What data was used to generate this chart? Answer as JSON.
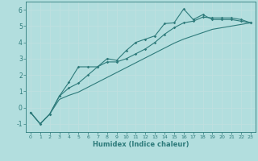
{
  "xlabel": "Humidex (Indice chaleur)",
  "ylabel": "",
  "xlim": [
    -0.5,
    23.5
  ],
  "ylim": [
    -1.5,
    6.5
  ],
  "yticks": [
    -1,
    0,
    1,
    2,
    3,
    4,
    5,
    6
  ],
  "xticks": [
    0,
    1,
    2,
    3,
    4,
    5,
    6,
    7,
    8,
    9,
    10,
    11,
    12,
    13,
    14,
    15,
    16,
    17,
    18,
    19,
    20,
    21,
    22,
    23
  ],
  "background_color": "#b2dede",
  "grid_color": "#c0e0e0",
  "line_color": "#2e7b7b",
  "line1_x": [
    0,
    1,
    2,
    3,
    4,
    5,
    6,
    7,
    8,
    9,
    10,
    11,
    12,
    13,
    14,
    15,
    16,
    17,
    18,
    19,
    20,
    21,
    22,
    23
  ],
  "line1_y": [
    -0.3,
    -1.0,
    -0.4,
    0.7,
    1.55,
    2.5,
    2.5,
    2.5,
    3.0,
    2.9,
    3.5,
    4.0,
    4.2,
    4.4,
    5.15,
    5.2,
    6.05,
    5.4,
    5.7,
    5.4,
    5.4,
    5.4,
    5.3,
    5.2
  ],
  "line2_x": [
    0,
    1,
    2,
    3,
    4,
    5,
    6,
    7,
    8,
    9,
    10,
    11,
    12,
    13,
    14,
    15,
    16,
    17,
    18,
    19,
    20,
    21,
    22,
    23
  ],
  "line2_y": [
    -0.3,
    -1.0,
    -0.4,
    0.7,
    1.2,
    1.5,
    2.0,
    2.5,
    2.8,
    2.8,
    3.0,
    3.3,
    3.6,
    4.0,
    4.5,
    4.9,
    5.2,
    5.3,
    5.55,
    5.5,
    5.5,
    5.5,
    5.4,
    5.2
  ],
  "line3_x": [
    0,
    1,
    2,
    3,
    4,
    5,
    6,
    7,
    8,
    9,
    10,
    11,
    12,
    13,
    14,
    15,
    16,
    17,
    18,
    19,
    20,
    21,
    22,
    23
  ],
  "line3_y": [
    -0.3,
    -1.0,
    -0.4,
    0.5,
    0.75,
    0.95,
    1.25,
    1.55,
    1.85,
    2.15,
    2.45,
    2.75,
    3.05,
    3.35,
    3.65,
    3.95,
    4.2,
    4.4,
    4.6,
    4.8,
    4.9,
    5.0,
    5.1,
    5.2
  ]
}
